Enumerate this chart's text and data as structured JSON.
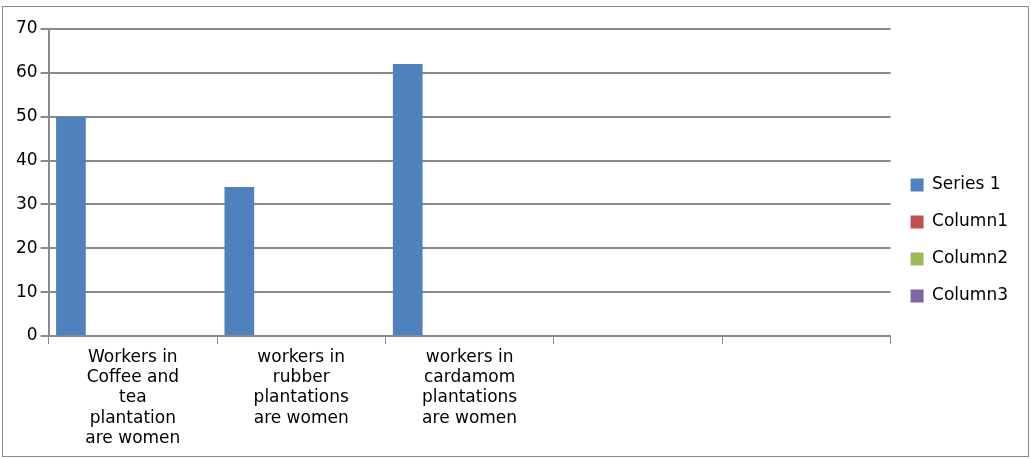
{
  "chart_data": {
    "type": "bar",
    "categories": [
      "Workers in Coffee and tea plantation are women",
      "workers in rubber plantations are women",
      "workers in cardamom plantations are women",
      null,
      null
    ],
    "series": [
      {
        "name": "Series 1",
        "color": "#4f81bd",
        "values": [
          50,
          34,
          62,
          null,
          null
        ]
      },
      {
        "name": "Column1",
        "color": "#c0504d",
        "values": [
          null,
          null,
          null,
          null,
          null
        ]
      },
      {
        "name": "Column2",
        "color": "#9bbb59",
        "values": [
          null,
          null,
          null,
          null,
          null
        ]
      },
      {
        "name": "Column3",
        "color": "#8064a2",
        "values": [
          null,
          null,
          null,
          null,
          null
        ]
      }
    ],
    "ylim": [
      0,
      70
    ],
    "yticks": [
      0,
      10,
      20,
      30,
      40,
      50,
      60,
      70
    ],
    "grid": "y",
    "legend": "right"
  }
}
